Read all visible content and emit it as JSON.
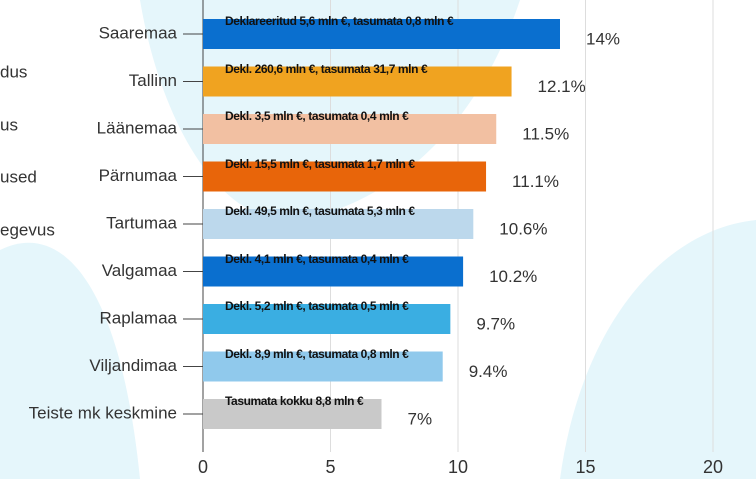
{
  "chart_data": {
    "type": "bar",
    "orientation": "horizontal",
    "categories": [
      "Saaremaa",
      "Tallinn",
      "Läänemaa",
      "Pärnumaa",
      "Tartumaa",
      "Valgamaa",
      "Raplamaa",
      "Viljandimaa",
      "Teiste mk keskmine"
    ],
    "values": [
      14,
      12.1,
      11.5,
      11.1,
      10.6,
      10.2,
      9.7,
      9.4,
      7
    ],
    "value_labels": [
      "14%",
      "12.1%",
      "11.5%",
      "11.1%",
      "10.6%",
      "10.2%",
      "9.7%",
      "9.4%",
      "7%"
    ],
    "annotations": [
      "Deklareeritud 5,6 mln €, tasumata 0,8 mln €",
      "Dekl. 260,6 mln €, tasumata 31,7 mln €",
      "Dekl. 3,5 mln €, tasumata 0,4 mln €",
      "Dekl. 15,5 mln €, tasumata 1,7 mln €",
      "Dekl. 49,5 mln €, tasumata 5,3 mln €",
      "Dekl. 4,1 mln €, tasumata 0,4 mln €",
      "Dekl.  5,2 mln €, tasumata 0,5 mln €",
      "Dekl. 8,9 mln €, tasumata 0,8 mln €",
      "Tasumata kokku 8,8 mln €"
    ],
    "colors": [
      "#0a6fcf",
      "#f0a320",
      "#f2c0a2",
      "#e8650a",
      "#bcd8ec",
      "#0a6fcf",
      "#3aaee2",
      "#90c9ec",
      "#c9c9c9"
    ],
    "xlim": [
      0,
      20
    ],
    "xticks": [
      0,
      5,
      10,
      15,
      20
    ],
    "grid": true
  },
  "side_fragments": [
    "dus",
    "us",
    "used",
    "egevus"
  ]
}
